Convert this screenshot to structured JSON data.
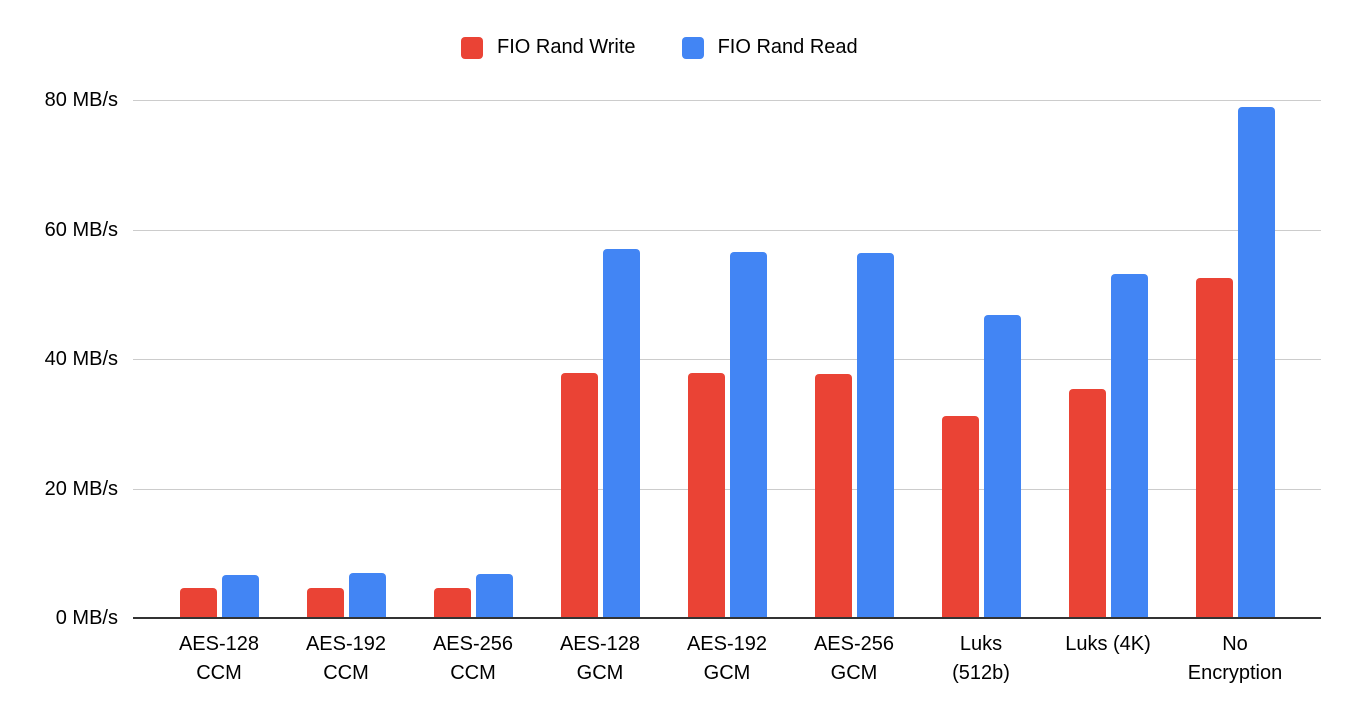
{
  "chart_data": {
    "type": "bar",
    "title": "",
    "categories": [
      "AES-128\nCCM",
      "AES-192\nCCM",
      "AES-256\nCCM",
      "AES-128\nGCM",
      "AES-192\nGCM",
      "AES-256\nGCM",
      "Luks\n(512b)",
      "Luks (4K)",
      "No\nEncryption"
    ],
    "series": [
      {
        "name": "FIO Rand Write",
        "color": "#EA4335",
        "values": [
          4.6,
          4.6,
          4.6,
          37.9,
          37.9,
          37.7,
          31.2,
          35.4,
          52.5
        ]
      },
      {
        "name": "FIO Rand Read",
        "color": "#4285F4",
        "values": [
          6.6,
          7.0,
          6.8,
          57.0,
          56.6,
          56.4,
          46.8,
          53.2,
          79.0
        ]
      }
    ],
    "xlabel": "",
    "ylabel": "",
    "ylim": [
      0,
      80
    ],
    "yticks": [
      0,
      20,
      40,
      60,
      80
    ],
    "ytick_labels": [
      "0 MB/s",
      "20 MB/s",
      "40 MB/s",
      "60 MB/s",
      "80 MB/s"
    ],
    "grid": true,
    "legend_position": "top"
  },
  "colors": {
    "series_write": "#EA4335",
    "series_read": "#4285F4",
    "gridline": "#cccccc",
    "baseline": "#333333",
    "text": "#000000",
    "background": "#ffffff"
  }
}
